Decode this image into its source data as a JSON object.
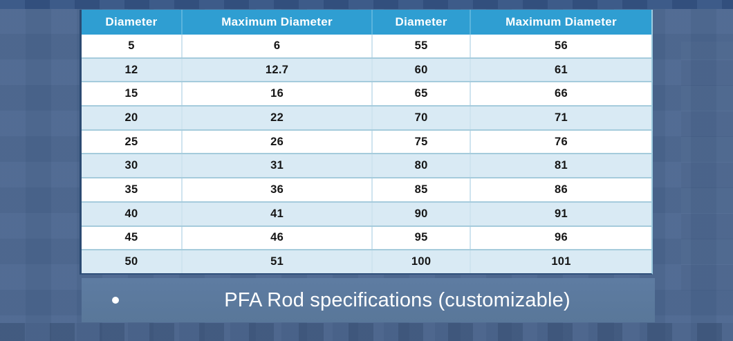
{
  "chart_data": {
    "type": "table",
    "title": "PFA Rod specifications (customizable)",
    "columns": [
      "Diameter",
      "Maximum Diameter",
      "Diameter",
      "Maximum Diameter"
    ],
    "rows": [
      [
        "5",
        "6",
        "55",
        "56"
      ],
      [
        "12",
        "12.7",
        "60",
        "61"
      ],
      [
        "15",
        "16",
        "65",
        "66"
      ],
      [
        "20",
        "22",
        "70",
        "71"
      ],
      [
        "25",
        "26",
        "75",
        "76"
      ],
      [
        "30",
        "31",
        "80",
        "81"
      ],
      [
        "35",
        "36",
        "85",
        "86"
      ],
      [
        "40",
        "41",
        "90",
        "91"
      ],
      [
        "45",
        "46",
        "95",
        "96"
      ],
      [
        "50",
        "51",
        "100",
        "101"
      ]
    ]
  },
  "caption": {
    "text": "PFA Rod specifications (customizable)",
    "bullet_icon": "white-dot"
  },
  "colors": {
    "header_blue": "#2f9ed2",
    "row_white": "#ffffff",
    "row_alt_blue": "#d9eaf4",
    "row_divider": "#a5cbdc",
    "caption_bg": "#5b79a0",
    "background_slate": "#4d6890",
    "table_left_border": "#2b4a72",
    "text_dark": "#151515",
    "text_light": "#ffffff"
  }
}
